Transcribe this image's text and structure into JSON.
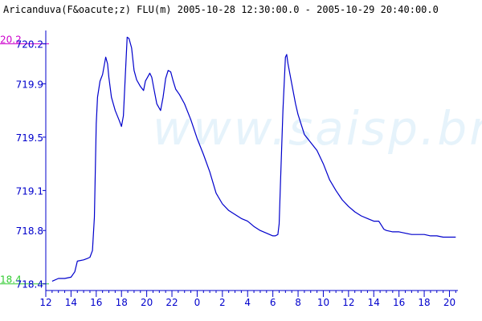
{
  "chart_data": {
    "type": "line",
    "title": "Aricanduva(F&oacute;z) FLU(m) 2005-10-28 12:30:00.0 - 2005-10-29 20:40:00.0",
    "watermark": "www.saisp.br",
    "xlabel": "",
    "ylabel": "",
    "xlim": [
      12,
      44.67
    ],
    "ylim": [
      718.35,
      720.3
    ],
    "x_ticks": [
      {
        "x": 12,
        "label": "12"
      },
      {
        "x": 14,
        "label": "14"
      },
      {
        "x": 16,
        "label": "16"
      },
      {
        "x": 18,
        "label": "18"
      },
      {
        "x": 20,
        "label": "20"
      },
      {
        "x": 22,
        "label": "22"
      },
      {
        "x": 24,
        "label": "0"
      },
      {
        "x": 26,
        "label": "2"
      },
      {
        "x": 28,
        "label": "4"
      },
      {
        "x": 30,
        "label": "6"
      },
      {
        "x": 32,
        "label": "8"
      },
      {
        "x": 34,
        "label": "10"
      },
      {
        "x": 36,
        "label": "12"
      },
      {
        "x": 38,
        "label": "14"
      },
      {
        "x": 40,
        "label": "16"
      },
      {
        "x": 42,
        "label": "18"
      },
      {
        "x": 44,
        "label": "20"
      }
    ],
    "y_ticks": [
      {
        "y": 718.4,
        "label": "718.4"
      },
      {
        "y": 718.8,
        "label": "718.8"
      },
      {
        "y": 719.1,
        "label": "719.1"
      },
      {
        "y": 719.5,
        "label": "719.5"
      },
      {
        "y": 719.9,
        "label": "719.9"
      },
      {
        "y": 720.2,
        "label": "720.2"
      }
    ],
    "reference_lines": [
      {
        "y": 720.2,
        "label": "20.2",
        "color": "#cc00cc"
      },
      {
        "y": 718.4,
        "label": "18.4",
        "color": "#33cc33"
      }
    ],
    "colors": {
      "line": "#0000cc",
      "axis": "#0000cc",
      "tick_label": "#0000cc",
      "watermark": "#e6f3fb"
    },
    "grid": false,
    "series": [
      {
        "color": "#0000cc",
        "points": [
          [
            12.5,
            718.42
          ],
          [
            13.0,
            718.44
          ],
          [
            13.5,
            718.44
          ],
          [
            14.0,
            718.45
          ],
          [
            14.3,
            718.49
          ],
          [
            14.5,
            718.57
          ],
          [
            15.0,
            718.58
          ],
          [
            15.3,
            718.59
          ],
          [
            15.5,
            718.6
          ],
          [
            15.7,
            718.65
          ],
          [
            15.85,
            718.9
          ],
          [
            16.0,
            719.6
          ],
          [
            16.1,
            719.8
          ],
          [
            16.3,
            719.92
          ],
          [
            16.5,
            719.97
          ],
          [
            16.75,
            720.1
          ],
          [
            16.9,
            720.05
          ],
          [
            17.0,
            719.95
          ],
          [
            17.2,
            719.8
          ],
          [
            17.5,
            719.7
          ],
          [
            17.8,
            719.63
          ],
          [
            18.0,
            719.58
          ],
          [
            18.15,
            719.66
          ],
          [
            18.3,
            719.95
          ],
          [
            18.45,
            720.25
          ],
          [
            18.6,
            720.24
          ],
          [
            18.8,
            720.17
          ],
          [
            19.0,
            720.0
          ],
          [
            19.2,
            719.93
          ],
          [
            19.5,
            719.88
          ],
          [
            19.75,
            719.85
          ],
          [
            19.9,
            719.92
          ],
          [
            20.25,
            719.98
          ],
          [
            20.4,
            719.95
          ],
          [
            20.6,
            719.85
          ],
          [
            20.8,
            719.75
          ],
          [
            21.1,
            719.7
          ],
          [
            21.3,
            719.8
          ],
          [
            21.5,
            719.94
          ],
          [
            21.7,
            720.0
          ],
          [
            21.9,
            719.99
          ],
          [
            22.1,
            719.92
          ],
          [
            22.3,
            719.86
          ],
          [
            22.6,
            719.82
          ],
          [
            23.0,
            719.75
          ],
          [
            23.5,
            719.63
          ],
          [
            24.0,
            719.49
          ],
          [
            24.5,
            719.37
          ],
          [
            25.0,
            719.24
          ],
          [
            25.5,
            719.08
          ],
          [
            26.0,
            719.0
          ],
          [
            26.5,
            718.95
          ],
          [
            27.0,
            718.92
          ],
          [
            27.5,
            718.89
          ],
          [
            28.0,
            718.87
          ],
          [
            28.5,
            718.83
          ],
          [
            29.0,
            718.8
          ],
          [
            29.5,
            718.78
          ],
          [
            30.0,
            718.76
          ],
          [
            30.2,
            718.76
          ],
          [
            30.4,
            718.77
          ],
          [
            30.5,
            718.85
          ],
          [
            30.6,
            719.15
          ],
          [
            30.8,
            719.7
          ],
          [
            31.0,
            720.1
          ],
          [
            31.1,
            720.12
          ],
          [
            31.2,
            720.05
          ],
          [
            31.5,
            719.9
          ],
          [
            31.8,
            719.75
          ],
          [
            32.0,
            719.67
          ],
          [
            32.5,
            719.52
          ],
          [
            33.0,
            719.46
          ],
          [
            33.5,
            719.4
          ],
          [
            34.0,
            719.3
          ],
          [
            34.5,
            719.18
          ],
          [
            35.0,
            719.1
          ],
          [
            35.5,
            719.03
          ],
          [
            36.0,
            718.98
          ],
          [
            36.5,
            718.94
          ],
          [
            37.0,
            718.91
          ],
          [
            37.5,
            718.89
          ],
          [
            38.0,
            718.87
          ],
          [
            38.4,
            718.87
          ],
          [
            38.6,
            718.84
          ],
          [
            38.8,
            718.81
          ],
          [
            39.0,
            718.8
          ],
          [
            39.5,
            718.79
          ],
          [
            40.0,
            718.79
          ],
          [
            40.5,
            718.78
          ],
          [
            41.0,
            718.77
          ],
          [
            41.5,
            718.77
          ],
          [
            42.0,
            718.77
          ],
          [
            42.5,
            718.76
          ],
          [
            43.0,
            718.76
          ],
          [
            43.5,
            718.75
          ],
          [
            44.0,
            718.75
          ],
          [
            44.5,
            718.75
          ]
        ]
      }
    ]
  }
}
